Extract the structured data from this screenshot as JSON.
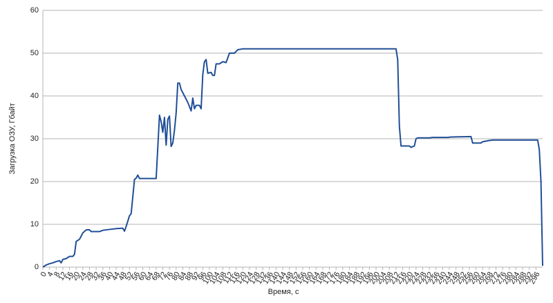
{
  "chart_data": {
    "type": "line",
    "x_label": "Время, с",
    "y_label": "Загрузка ОЗУ, Гбайт",
    "x": [
      0,
      2,
      4,
      6,
      8,
      10,
      11,
      12,
      14,
      16,
      18,
      19,
      20,
      22,
      24,
      26,
      28,
      29,
      34,
      36,
      40,
      44,
      48,
      49,
      50,
      52,
      53,
      55,
      56,
      57,
      58,
      68,
      69,
      70,
      71,
      72,
      73,
      74,
      75,
      76,
      77,
      78,
      79,
      80,
      81,
      82,
      83,
      85,
      87,
      89,
      90,
      91,
      92,
      94,
      95,
      96,
      97,
      98,
      99,
      101,
      102,
      103,
      104,
      106,
      108,
      110,
      112,
      115,
      117,
      120,
      212,
      213,
      214,
      215,
      220,
      221,
      223,
      224,
      225,
      232,
      234,
      243,
      245,
      257,
      258,
      263,
      264,
      268,
      270,
      297,
      298,
      299,
      300
    ],
    "series": [
      {
        "name": "Загрузка ОЗУ",
        "color": "#1f4e96",
        "values": [
          0,
          0.5,
          0.8,
          1,
          1.3,
          1.5,
          1,
          1.8,
          2,
          2.5,
          2.5,
          3,
          6,
          6.5,
          8,
          8.7,
          8.7,
          8.3,
          8.3,
          8.6,
          8.8,
          9,
          9.1,
          8.4,
          9.5,
          12,
          12.5,
          20.5,
          20.8,
          21.5,
          20.7,
          20.7,
          28,
          35.5,
          34,
          31.5,
          35,
          28.5,
          34.5,
          35.3,
          28.2,
          29,
          32,
          36,
          43,
          43,
          41.5,
          40,
          38.5,
          36.5,
          39.5,
          37,
          37.8,
          37.8,
          37,
          45,
          48,
          48.5,
          45.3,
          45.5,
          44.8,
          44.8,
          47.5,
          47.5,
          48,
          47.8,
          50,
          50,
          50.8,
          51,
          51,
          48.5,
          33,
          28.3,
          28.3,
          28,
          28.3,
          30,
          30.2,
          30.2,
          30.3,
          30.3,
          30.4,
          30.5,
          29,
          29,
          29.3,
          29.6,
          29.7,
          29.7,
          27.5,
          20,
          0.3
        ]
      }
    ],
    "xlim": [
      0,
      300
    ],
    "xticks": [
      0,
      4,
      8,
      12,
      16,
      20,
      24,
      28,
      32,
      36,
      40,
      44,
      48,
      52,
      56,
      60,
      64,
      68,
      72,
      76,
      80,
      84,
      88,
      92,
      96,
      100,
      104,
      108,
      112,
      116,
      120,
      124,
      128,
      132,
      136,
      140,
      144,
      148,
      152,
      156,
      160,
      164,
      168,
      172,
      176,
      180,
      184,
      188,
      192,
      196,
      200,
      204,
      208,
      212,
      216,
      220,
      224,
      228,
      232,
      236,
      240,
      244,
      248,
      252,
      256,
      260,
      264,
      268,
      272,
      276,
      280,
      284,
      288,
      292,
      296
    ],
    "ylim": [
      0,
      60
    ],
    "yticks": [
      0,
      10,
      20,
      30,
      40,
      50,
      60
    ],
    "grid": true
  }
}
